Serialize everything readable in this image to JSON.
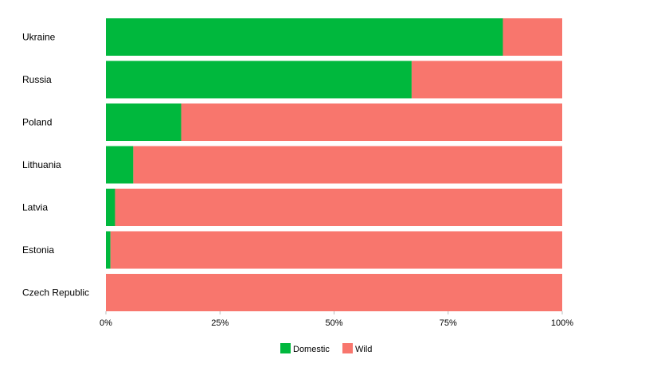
{
  "chart_data": {
    "type": "bar",
    "orientation": "horizontal",
    "stacked": true,
    "normalized": true,
    "categories": [
      "Ukraine",
      "Russia",
      "Poland",
      "Lithuania",
      "Latvia",
      "Estonia",
      "Czech Republic"
    ],
    "series": [
      {
        "name": "Domestic",
        "color": "#00b83d",
        "values": [
          87,
          67,
          16.5,
          6,
          2,
          1,
          0
        ]
      },
      {
        "name": "Wild",
        "color": "#f8766d",
        "values": [
          13,
          33,
          83.5,
          94,
          98,
          99,
          100
        ]
      }
    ],
    "x_ticks": [
      "0%",
      "25%",
      "50%",
      "75%",
      "100%"
    ],
    "xlim": [
      0,
      100
    ],
    "grid": false,
    "legend_position": "bottom"
  }
}
